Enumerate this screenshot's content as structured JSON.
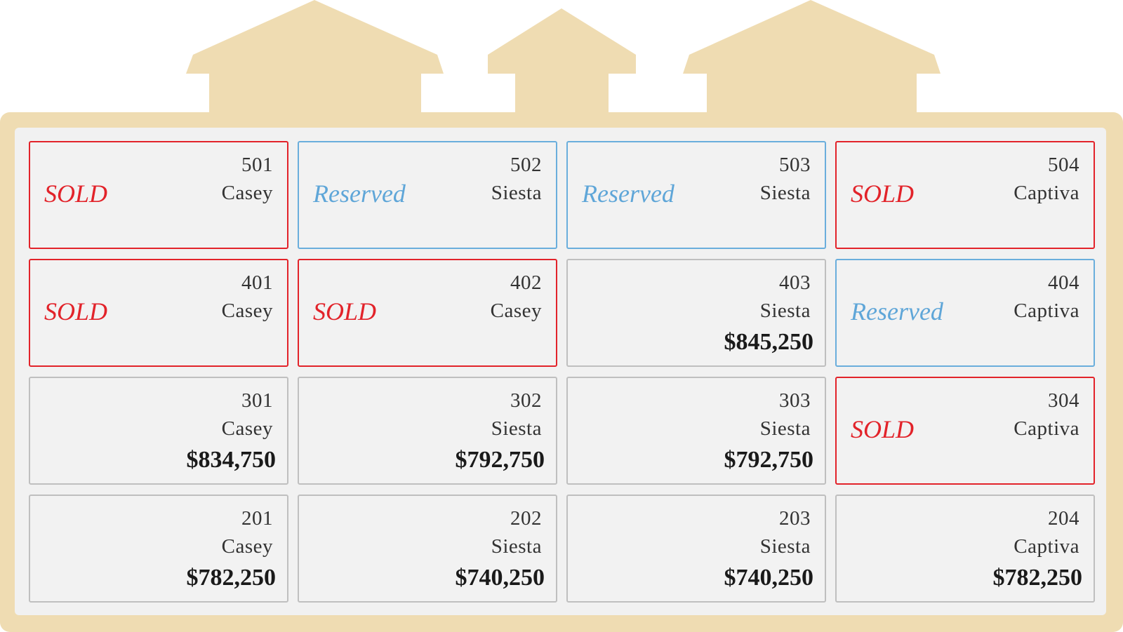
{
  "colors": {
    "frame": "#efdcb2",
    "sold": "#e2232a",
    "reserved": "#5fa6d8",
    "available_border": "#bfbfbf",
    "card_background": "#f2f2f2"
  },
  "units": [
    {
      "number": "501",
      "model": "Casey",
      "status": "sold",
      "status_label": "SOLD",
      "price": ""
    },
    {
      "number": "502",
      "model": "Siesta",
      "status": "reserved",
      "status_label": "Reserved",
      "price": ""
    },
    {
      "number": "503",
      "model": "Siesta",
      "status": "reserved",
      "status_label": "Reserved",
      "price": ""
    },
    {
      "number": "504",
      "model": "Captiva",
      "status": "sold",
      "status_label": "SOLD",
      "price": ""
    },
    {
      "number": "401",
      "model": "Casey",
      "status": "sold",
      "status_label": "SOLD",
      "price": ""
    },
    {
      "number": "402",
      "model": "Casey",
      "status": "sold",
      "status_label": "SOLD",
      "price": ""
    },
    {
      "number": "403",
      "model": "Siesta",
      "status": "available",
      "status_label": "",
      "price": "$845,250"
    },
    {
      "number": "404",
      "model": "Captiva",
      "status": "reserved",
      "status_label": "Reserved",
      "price": ""
    },
    {
      "number": "301",
      "model": "Casey",
      "status": "available",
      "status_label": "",
      "price": "$834,750"
    },
    {
      "number": "302",
      "model": "Siesta",
      "status": "available",
      "status_label": "",
      "price": "$792,750"
    },
    {
      "number": "303",
      "model": "Siesta",
      "status": "available",
      "status_label": "",
      "price": "$792,750"
    },
    {
      "number": "304",
      "model": "Captiva",
      "status": "sold",
      "status_label": "SOLD",
      "price": ""
    },
    {
      "number": "201",
      "model": "Casey",
      "status": "available",
      "status_label": "",
      "price": "$782,250"
    },
    {
      "number": "202",
      "model": "Siesta",
      "status": "available",
      "status_label": "",
      "price": "$740,250"
    },
    {
      "number": "203",
      "model": "Siesta",
      "status": "available",
      "status_label": "",
      "price": "$740,250"
    },
    {
      "number": "204",
      "model": "Captiva",
      "status": "available",
      "status_label": "",
      "price": "$782,250"
    }
  ]
}
